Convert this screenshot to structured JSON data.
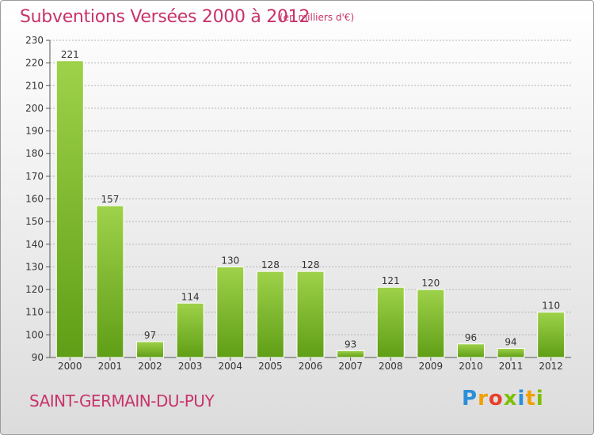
{
  "header": {
    "title": "Subventions Versées 2000 à 2012",
    "unit": "(en milliers d'€)"
  },
  "commune": "SAINT-GERMAIN-DU-PUY",
  "logo": {
    "text": "Proxiti",
    "letters": [
      {
        "ch": "P",
        "color": "#2a8fd8"
      },
      {
        "ch": "r",
        "color": "#f0a000"
      },
      {
        "ch": "o",
        "color": "#e8402a"
      },
      {
        "ch": "x",
        "color": "#7cc000"
      },
      {
        "ch": "i",
        "color": "#2a8fd8"
      },
      {
        "ch": "t",
        "color": "#f0a000"
      },
      {
        "ch": "i",
        "color": "#7cc000"
      }
    ]
  },
  "colors": {
    "title": "#c8336a",
    "bar_top": "#9ed24a",
    "bar_bottom": "#5f9e16",
    "grid": "#b4b4b4",
    "text": "#333333"
  },
  "chart_data": {
    "type": "bar",
    "categories": [
      "2000",
      "2001",
      "2002",
      "2003",
      "2004",
      "2005",
      "2006",
      "2007",
      "2008",
      "2009",
      "2010",
      "2011",
      "2012"
    ],
    "values": [
      221,
      157,
      97,
      114,
      130,
      128,
      128,
      93,
      121,
      120,
      96,
      94,
      110
    ],
    "ylim": [
      90,
      230
    ],
    "yticks": [
      90,
      100,
      110,
      120,
      130,
      140,
      150,
      160,
      170,
      180,
      190,
      200,
      210,
      220,
      230
    ],
    "grid": true,
    "data_labels": true
  }
}
